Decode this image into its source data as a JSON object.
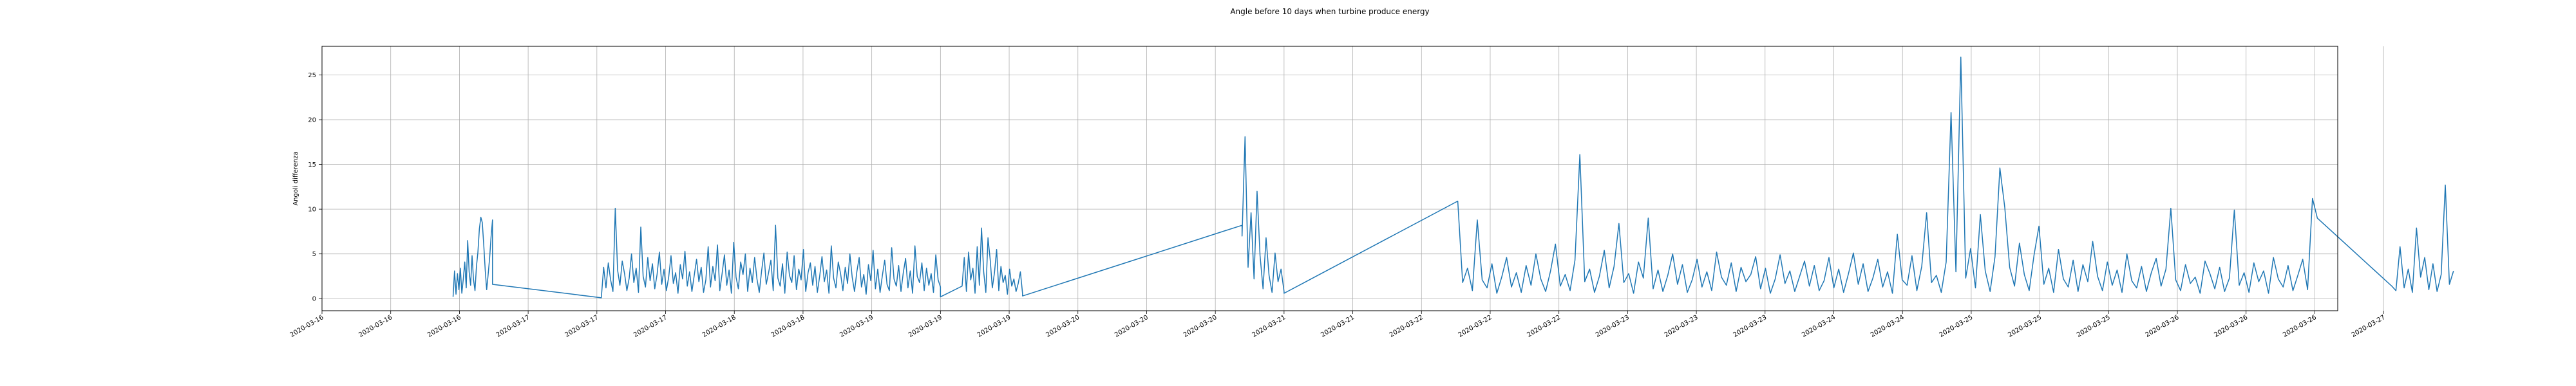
{
  "chart_data": {
    "type": "line",
    "title": "Angle before 10 days when turbine produce energy",
    "xlabel": "",
    "ylabel": "Angoli differenza",
    "grid": true,
    "legend": "none",
    "line_color": "#1f77b4",
    "ylim": [
      -1.35,
      28.2
    ],
    "xlim": [
      "2020-03-16 00:00",
      "2020-03-27 00:00"
    ],
    "y_ticks": [
      0,
      5,
      10,
      15,
      20,
      25
    ],
    "y_tick_labels": [
      "0",
      "5",
      "10",
      "15",
      "20",
      "25"
    ],
    "x_ticks": [
      "2020-03-16 00:00",
      "2020-03-16 09:00",
      "2020-03-16 18:00",
      "2020-03-17 03:00",
      "2020-03-17 12:00",
      "2020-03-17 21:00",
      "2020-03-18 06:00",
      "2020-03-18 15:00",
      "2020-03-19 00:00",
      "2020-03-19 09:00",
      "2020-03-19 18:00",
      "2020-03-20 03:00",
      "2020-03-20 12:00",
      "2020-03-20 21:00",
      "2020-03-21 06:00",
      "2020-03-21 15:00",
      "2020-03-22 00:00",
      "2020-03-22 09:00",
      "2020-03-22 18:00",
      "2020-03-23 03:00",
      "2020-03-23 12:00",
      "2020-03-23 21:00",
      "2020-03-24 06:00",
      "2020-03-24 15:00",
      "2020-03-25 00:00",
      "2020-03-25 09:00",
      "2020-03-25 18:00",
      "2020-03-26 03:00",
      "2020-03-26 12:00",
      "2020-03-26 21:00",
      "2020-03-27 06:00"
    ],
    "x_tick_labels": [
      "2020-03-16",
      "2020-03-16",
      "2020-03-16",
      "2020-03-17",
      "2020-03-17",
      "2020-03-17",
      "2020-03-18",
      "2020-03-18",
      "2020-03-19",
      "2020-03-19",
      "2020-03-19",
      "2020-03-20",
      "2020-03-20",
      "2020-03-20",
      "2020-03-21",
      "2020-03-21",
      "2020-03-22",
      "2020-03-22",
      "2020-03-22",
      "2020-03-23",
      "2020-03-23",
      "2020-03-23",
      "2020-03-24",
      "2020-03-24",
      "2020-03-25",
      "2020-03-25",
      "2020-03-25",
      "2020-03-26",
      "2020-03-26",
      "2020-03-26",
      "2020-03-27"
    ],
    "series": [
      {
        "segments": [
          {
            "x0": "2020-03-16 17:10",
            "x1": "2020-03-16 22:20",
            "y": [
              0.2,
              3.1,
              0.5,
              2.8,
              1.0,
              3.4,
              0.6,
              2.2,
              4.1,
              1.2,
              6.5,
              3.0,
              1.5,
              4.8,
              2.1,
              0.9,
              3.6,
              5.2,
              7.8,
              9.1,
              8.5,
              6.0,
              3.2,
              1.0,
              2.7,
              4.5,
              6.9,
              8.8
            ]
          },
          {
            "x0": "2020-03-16 22:20",
            "x1": "2020-03-17 12:35",
            "y": [
              1.6,
              0.1
            ]
          },
          {
            "x0": "2020-03-17 12:35",
            "x1": "2020-03-19 09:00",
            "y": [
              0.1,
              3.5,
              1.2,
              4.0,
              2.1,
              0.8,
              10.1,
              3.2,
              1.5,
              4.2,
              2.8,
              0.9,
              2.3,
              5.0,
              1.8,
              3.4,
              0.7,
              8.0,
              2.5,
              1.3,
              4.6,
              2.0,
              3.9,
              1.1,
              2.7,
              5.2,
              1.6,
              3.3,
              0.9,
              2.4,
              4.8,
              1.7,
              2.9,
              0.6,
              3.8,
              2.2,
              5.3,
              1.4,
              3.0,
              0.8,
              2.6,
              4.4,
              1.9,
              3.5,
              0.7,
              2.1,
              5.8,
              1.3,
              3.6,
              2.0,
              6.0,
              0.9,
              2.8,
              4.9,
              1.5,
              3.2,
              0.6,
              6.3,
              2.4,
              1.1,
              4.1,
              2.7,
              5.0,
              0.8,
              3.4,
              1.8,
              4.6,
              2.2,
              0.7,
              3.1,
              5.1,
              1.6,
              2.9,
              4.3,
              0.9,
              8.2,
              2.3,
              1.4,
              3.9,
              0.6,
              5.2,
              2.6,
              1.8,
              4.8,
              1.0,
              3.3,
              2.1,
              5.5,
              0.8,
              2.9,
              4.0,
              1.5,
              3.6,
              0.7,
              2.5,
              4.7,
              1.9,
              3.2,
              0.6,
              5.9,
              2.3,
              1.2,
              4.1,
              2.8,
              0.9,
              3.5,
              1.7,
              5.0,
              2.4,
              0.8,
              3.0,
              4.6,
              1.3,
              2.7,
              0.5,
              3.8,
              2.0,
              5.4,
              1.1,
              3.3,
              0.7,
              2.6,
              4.3,
              1.6,
              0.9,
              5.7,
              2.2,
              1.4,
              3.7,
              0.8,
              2.9,
              4.5,
              1.2,
              3.1,
              0.6,
              5.9,
              2.5,
              1.8,
              4.0,
              0.9,
              3.4,
              1.5,
              2.8,
              0.7,
              4.9,
              2.1,
              1.3
            ]
          },
          {
            "x0": "2020-03-19 09:00",
            "x1": "2020-03-19 11:50",
            "y": [
              0.2,
              1.4
            ]
          },
          {
            "x0": "2020-03-19 11:50",
            "x1": "2020-03-19 19:45",
            "y": [
              1.4,
              4.6,
              0.8,
              5.2,
              2.1,
              3.4,
              0.6,
              5.8,
              1.5,
              7.9,
              3.0,
              0.7,
              6.8,
              4.4,
              1.2,
              2.9,
              5.5,
              0.9,
              3.6,
              1.8,
              2.6,
              0.5,
              3.3,
              1.4,
              2.2,
              0.8,
              1.7,
              3.0,
              0.6
            ]
          },
          {
            "x0": "2020-03-19 19:45",
            "x1": "2020-03-21 00:30",
            "y": [
              0.3,
              8.2
            ]
          },
          {
            "x0": "2020-03-21 00:30",
            "x1": "2020-03-21 06:00",
            "y": [
              7.0,
              18.1,
              3.5,
              9.6,
              2.2,
              12.0,
              4.8,
              1.1,
              6.8,
              2.6,
              0.7,
              5.1,
              1.9,
              3.3,
              0.8
            ]
          },
          {
            "x0": "2020-03-21 06:00",
            "x1": "2020-03-22 04:45",
            "y": [
              0.6,
              10.9
            ]
          },
          {
            "x0": "2020-03-22 04:45",
            "x1": "2020-03-26 21:20",
            "y": [
              10.9,
              1.8,
              3.4,
              0.9,
              8.8,
              2.1,
              1.2,
              3.9,
              0.6,
              2.4,
              4.6,
              1.3,
              2.9,
              0.7,
              3.7,
              1.5,
              5.0,
              2.2,
              0.8,
              3.1,
              6.1,
              1.4,
              2.7,
              0.9,
              4.3,
              16.1,
              1.9,
              3.3,
              0.7,
              2.5,
              5.4,
              1.2,
              3.6,
              8.4,
              1.8,
              2.8,
              0.6,
              4.1,
              2.3,
              9.0,
              1.1,
              3.2,
              0.8,
              2.6,
              5.0,
              1.6,
              3.8,
              0.7,
              2.1,
              4.4,
              1.3,
              3.0,
              0.9,
              5.2,
              2.4,
              1.5,
              4.0,
              0.8,
              3.5,
              1.9,
              2.7,
              4.7,
              1.1,
              3.4,
              0.6,
              2.2,
              4.9,
              1.7,
              3.1,
              0.8,
              2.5,
              4.2,
              1.4,
              3.7,
              0.9,
              2.0,
              4.6,
              1.2,
              3.3,
              0.7,
              2.8,
              5.1,
              1.6,
              3.9,
              0.8,
              2.3,
              4.4,
              1.3,
              3.0,
              0.6,
              7.2,
              2.1,
              1.5,
              4.8,
              0.9,
              3.6,
              9.6,
              1.8,
              2.6,
              0.7,
              4.1,
              20.8,
              3.0,
              27.0,
              2.3,
              5.6,
              1.2,
              9.4,
              3.1,
              0.8,
              4.7,
              14.6,
              10.2,
              3.5,
              1.4,
              6.2,
              2.7,
              0.9,
              4.9,
              8.1,
              1.6,
              3.4,
              0.7,
              5.5,
              2.2,
              1.3,
              4.3,
              0.8,
              3.8,
              1.9,
              6.4,
              2.5,
              0.9,
              4.1,
              1.5,
              3.2,
              0.7,
              5.0,
              2.0,
              1.2,
              3.6,
              0.8,
              2.9,
              4.5,
              1.4,
              3.3,
              10.1,
              2.1,
              0.9,
              3.8,
              1.7,
              2.4,
              0.6,
              4.2,
              2.8,
              1.1,
              3.5,
              0.8,
              2.3,
              9.9,
              1.5,
              2.9,
              0.7,
              4.0,
              1.9,
              3.1,
              0.6,
              4.6,
              2.2,
              1.3,
              3.7,
              0.9,
              2.6,
              4.4,
              1.0,
              11.2,
              9.0
            ]
          },
          {
            "x0": "2020-03-26 21:20",
            "x1": "2020-03-27 07:05",
            "y": [
              9.0,
              1.4
            ]
          },
          {
            "x0": "2020-03-27 07:05",
            "x1": "2020-03-27 15:10",
            "y": [
              1.4,
              0.9,
              5.8,
              1.2,
              3.3,
              0.7,
              7.9,
              2.4,
              4.6,
              1.0,
              3.9,
              0.8,
              2.7,
              12.7,
              1.6,
              3.1
            ]
          }
        ]
      }
    ]
  }
}
